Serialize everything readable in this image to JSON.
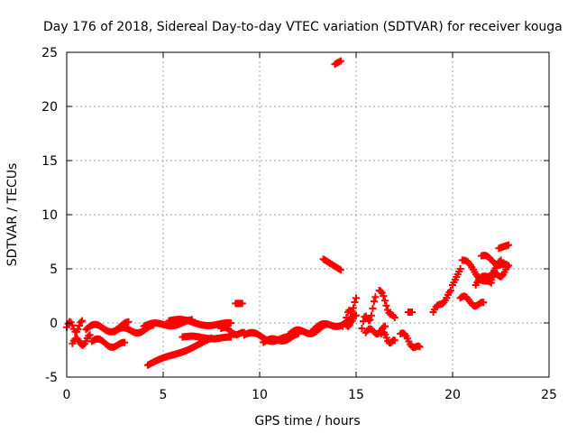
{
  "chart_data": {
    "type": "scatter",
    "title": "Day 176 of 2018, Sidereal Day-to-day VTEC variation (SDTVAR) for receiver kouga",
    "xlabel": "GPS time / hours",
    "ylabel": "SDTVAR / TECUs",
    "xlim": [
      0,
      25
    ],
    "ylim": [
      -5,
      25
    ],
    "xticks": [
      "0",
      "5",
      "10",
      "15",
      "20",
      "25"
    ],
    "yticks": [
      "-5",
      "0",
      "5",
      "10",
      "15",
      "20",
      "25"
    ],
    "grid": true,
    "marker": "plus",
    "series_color": "#ff0000",
    "segments": [
      {
        "x0": 0.0,
        "x1": 0.8,
        "y0": -0.4,
        "y1": -0.3,
        "wave": 0.5
      },
      {
        "x0": 0.3,
        "x1": 1.2,
        "y0": -1.9,
        "y1": -1.5,
        "wave": 0.4
      },
      {
        "x0": 1.0,
        "x1": 3.2,
        "y0": -0.6,
        "y1": -0.3,
        "wave": 0.4
      },
      {
        "x0": 1.3,
        "x1": 3.0,
        "y0": -1.7,
        "y1": -2.1,
        "wave": 0.3
      },
      {
        "x0": 2.5,
        "x1": 4.5,
        "y0": -0.8,
        "y1": -0.5,
        "wave": 0.3
      },
      {
        "x0": 4.0,
        "x1": 6.5,
        "y0": -0.3,
        "y1": 0.1,
        "wave": 0.2
      },
      {
        "x0": 5.3,
        "x1": 8.5,
        "y0": 0.2,
        "y1": -0.2,
        "wave": 0.2
      },
      {
        "x0": 4.2,
        "x1": 7.5,
        "y0": -3.9,
        "y1": -1.5,
        "wave": 0.1
      },
      {
        "x0": 6.0,
        "x1": 8.5,
        "y0": -1.3,
        "y1": -1.4,
        "wave": 0.1
      },
      {
        "x0": 8.0,
        "x1": 9.2,
        "y0": -0.5,
        "y1": -1.1,
        "wave": 0.2
      },
      {
        "x0": 8.75,
        "x1": 9.1,
        "y0": 1.8,
        "y1": 1.8,
        "wave": 0.0
      },
      {
        "x0": 9.2,
        "x1": 11.5,
        "y0": -1.1,
        "y1": -1.6,
        "wave": 0.3
      },
      {
        "x0": 10.2,
        "x1": 12.0,
        "y0": -1.8,
        "y1": -1.2,
        "wave": 0.2
      },
      {
        "x0": 11.5,
        "x1": 13.5,
        "y0": -1.1,
        "y1": -0.4,
        "wave": 0.3
      },
      {
        "x0": 12.8,
        "x1": 15.0,
        "y0": -0.6,
        "y1": 0.4,
        "wave": 0.3
      },
      {
        "x0": 13.3,
        "x1": 14.2,
        "y0": 5.9,
        "y1": 4.9,
        "wave": 0.0
      },
      {
        "x0": 13.9,
        "x1": 14.2,
        "y0": 23.9,
        "y1": 24.2,
        "wave": 0.0
      },
      {
        "x0": 14.5,
        "x1": 15.0,
        "y0": 0.5,
        "y1": 2.0,
        "wave": 0.3
      },
      {
        "x0": 14.3,
        "x1": 14.8,
        "y0": -0.3,
        "y1": 0.0,
        "wave": 0.2
      },
      {
        "x0": 15.3,
        "x1": 16.0,
        "y0": -0.5,
        "y1": 1.8,
        "wave": 0.6
      },
      {
        "x0": 15.5,
        "x1": 16.5,
        "y0": -0.9,
        "y1": -0.6,
        "wave": 0.3
      },
      {
        "x0": 16.2,
        "x1": 17.0,
        "y0": 3.0,
        "y1": 0.2,
        "wave": 0.3
      },
      {
        "x0": 16.3,
        "x1": 17.0,
        "y0": -1.0,
        "y1": -1.9,
        "wave": 0.3
      },
      {
        "x0": 17.3,
        "x1": 18.3,
        "y0": -1.0,
        "y1": -2.5,
        "wave": 0.3
      },
      {
        "x0": 17.7,
        "x1": 17.9,
        "y0": 1.0,
        "y1": 1.0,
        "wave": 0.0
      },
      {
        "x0": 19.0,
        "x1": 19.9,
        "y0": 1.0,
        "y1": 2.8,
        "wave": 0.2
      },
      {
        "x0": 20.0,
        "x1": 20.4,
        "y0": 3.5,
        "y1": 5.0,
        "wave": 0.0
      },
      {
        "x0": 20.4,
        "x1": 21.6,
        "y0": 2.3,
        "y1": 1.6,
        "wave": 0.3
      },
      {
        "x0": 20.5,
        "x1": 22.0,
        "y0": 5.8,
        "y1": 3.4,
        "wave": 0.3
      },
      {
        "x0": 21.2,
        "x1": 22.5,
        "y0": 3.5,
        "y1": 5.5,
        "wave": 0.3
      },
      {
        "x0": 21.5,
        "x1": 22.8,
        "y0": 6.2,
        "y1": 5.2,
        "wave": 0.2
      },
      {
        "x0": 22.0,
        "x1": 22.9,
        "y0": 4.0,
        "y1": 5.0,
        "wave": 0.3
      },
      {
        "x0": 22.4,
        "x1": 22.9,
        "y0": 6.9,
        "y1": 7.2,
        "wave": 0.0
      }
    ]
  }
}
